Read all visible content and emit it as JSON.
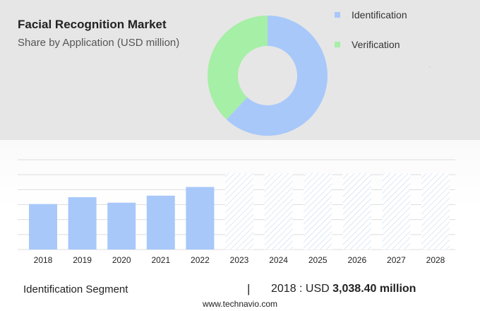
{
  "header": {
    "title": "Facial Recognition Market",
    "subtitle": "Share by Application (USD million)"
  },
  "colors": {
    "identification": "#a8c8fa",
    "verification": "#a6efa6",
    "forecast_hatch": "#c8d8f0",
    "gridline": "#dddddd"
  },
  "legend": [
    {
      "label": "Identification",
      "color": "#a8c8fa"
    },
    {
      "label": "Verification",
      "color": "#a6efa6"
    }
  ],
  "chart_data": [
    {
      "type": "pie",
      "variant": "donut",
      "labels": [
        "Identification",
        "Verification"
      ],
      "values": [
        62,
        38
      ],
      "legend_position": "right"
    },
    {
      "type": "bar",
      "categories": [
        "2018",
        "2019",
        "2020",
        "2021",
        "2022",
        "2023",
        "2024",
        "2025",
        "2026",
        "2027",
        "2028"
      ],
      "values": [
        3038.4,
        3500,
        3130,
        3600,
        4180,
        null,
        null,
        null,
        null,
        null,
        null
      ],
      "forecast_categories": [
        "2023",
        "2024",
        "2025",
        "2026",
        "2027",
        "2028"
      ],
      "ylim": [
        0,
        6000
      ],
      "grid": true
    }
  ],
  "footer": {
    "segment_label": "Identification Segment",
    "separator": "|",
    "year_prefix": "2018 : USD ",
    "value": "3,038.40 million"
  },
  "source": "www.technavio.com"
}
